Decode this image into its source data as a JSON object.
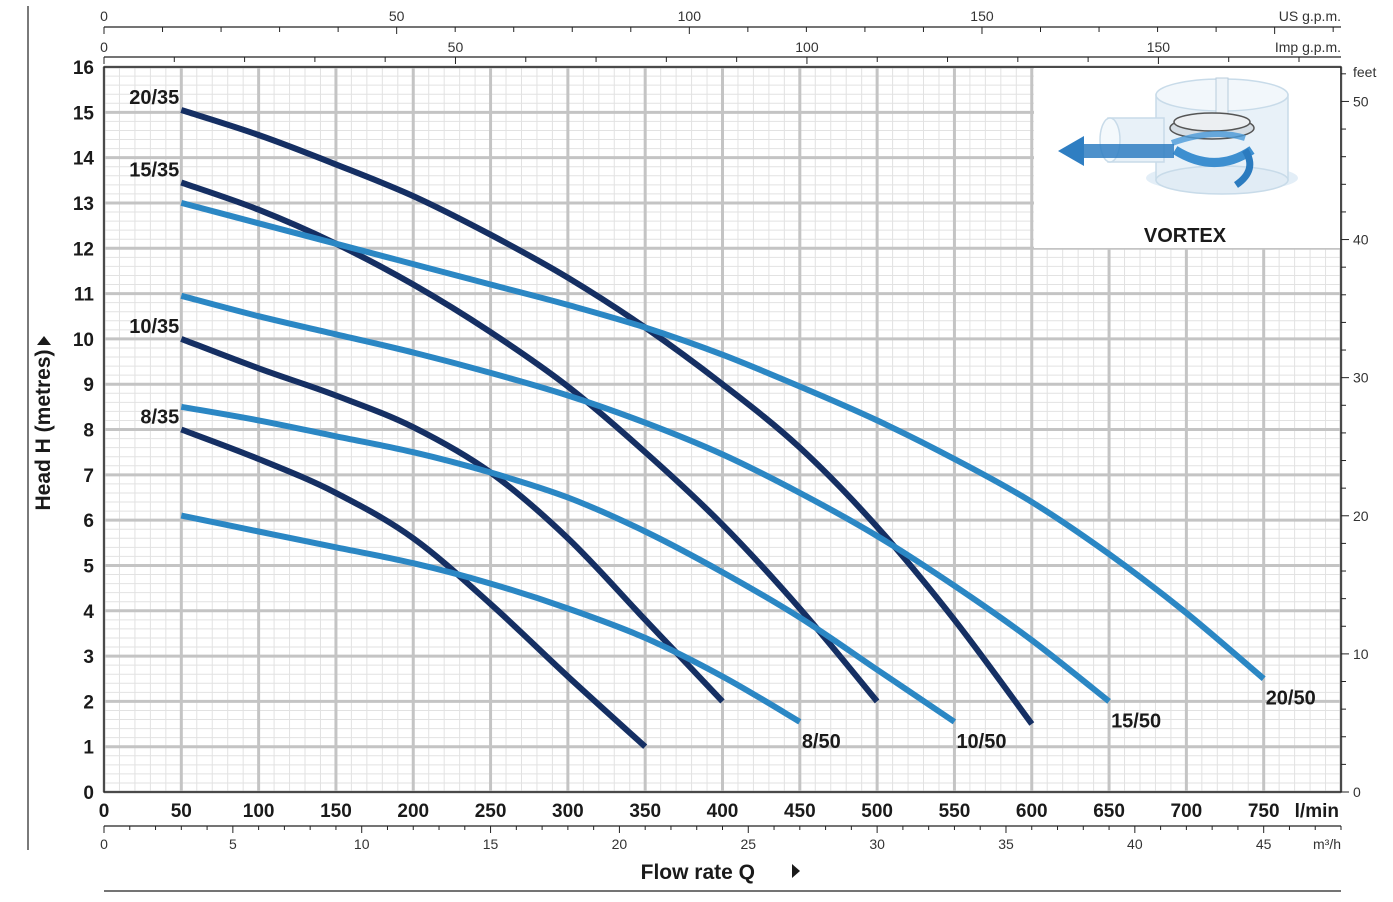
{
  "chart_data": {
    "type": "line",
    "xlabel": "Flow rate Q",
    "ylabel": "Head H  (metres)",
    "x_unit": "l/min",
    "xlim": [
      0,
      800
    ],
    "ylim": [
      0,
      16
    ],
    "x_ticks": [
      "0",
      "50",
      "100",
      "150",
      "200",
      "250",
      "300",
      "350",
      "400",
      "450",
      "500",
      "550",
      "600",
      "650",
      "700",
      "750"
    ],
    "y_ticks": [
      "0",
      "1",
      "2",
      "3",
      "4",
      "5",
      "6",
      "7",
      "8",
      "9",
      "10",
      "11",
      "12",
      "13",
      "14",
      "15",
      "16"
    ],
    "secondary_axes": {
      "top_us": {
        "unit": "US g.p.m.",
        "ticks": [
          "0",
          "50",
          "100",
          "150"
        ]
      },
      "top_imp": {
        "unit": "Imp g.p.m.",
        "ticks": [
          "0",
          "50",
          "100",
          "150"
        ]
      },
      "bottom_m3h": {
        "unit": "m³/h",
        "ticks": [
          "0",
          "5",
          "10",
          "15",
          "20",
          "25",
          "30",
          "35",
          "40",
          "45"
        ]
      },
      "right_feet": {
        "unit": "feet",
        "ticks": [
          "0",
          "10",
          "20",
          "30",
          "40",
          "50"
        ]
      }
    },
    "grid": true,
    "inset_label": "VORTEX",
    "colors": {
      "35_series": "#152f63",
      "50_series": "#2b87c4",
      "grid_major": "#c4c4c4",
      "grid_minor": "#e2e2e2"
    },
    "series": [
      {
        "name": "20/35",
        "color": "#152f63",
        "points": [
          [
            50,
            15.05
          ],
          [
            100,
            14.5
          ],
          [
            150,
            13.85
          ],
          [
            200,
            13.15
          ],
          [
            250,
            12.3
          ],
          [
            300,
            11.35
          ],
          [
            350,
            10.25
          ],
          [
            400,
            9.0
          ],
          [
            450,
            7.6
          ],
          [
            500,
            5.85
          ],
          [
            550,
            3.8
          ],
          [
            600,
            1.5
          ]
        ]
      },
      {
        "name": "15/35",
        "color": "#152f63",
        "points": [
          [
            50,
            13.45
          ],
          [
            100,
            12.85
          ],
          [
            150,
            12.1
          ],
          [
            200,
            11.2
          ],
          [
            250,
            10.15
          ],
          [
            300,
            8.95
          ],
          [
            350,
            7.5
          ],
          [
            400,
            5.9
          ],
          [
            450,
            4.05
          ],
          [
            500,
            2.0
          ]
        ]
      },
      {
        "name": "10/35",
        "color": "#152f63",
        "points": [
          [
            50,
            10.0
          ],
          [
            100,
            9.35
          ],
          [
            150,
            8.75
          ],
          [
            200,
            8.05
          ],
          [
            250,
            7.05
          ],
          [
            300,
            5.6
          ],
          [
            350,
            3.8
          ],
          [
            400,
            2.0
          ]
        ]
      },
      {
        "name": "8/35",
        "color": "#152f63",
        "points": [
          [
            50,
            8.0
          ],
          [
            100,
            7.35
          ],
          [
            150,
            6.6
          ],
          [
            200,
            5.6
          ],
          [
            250,
            4.15
          ],
          [
            300,
            2.55
          ],
          [
            350,
            1.0
          ]
        ]
      },
      {
        "name": "20/50",
        "color": "#2b87c4",
        "points": [
          [
            50,
            13.0
          ],
          [
            100,
            12.55
          ],
          [
            150,
            12.1
          ],
          [
            200,
            11.65
          ],
          [
            250,
            11.2
          ],
          [
            300,
            10.75
          ],
          [
            350,
            10.25
          ],
          [
            400,
            9.65
          ],
          [
            450,
            8.95
          ],
          [
            500,
            8.2
          ],
          [
            550,
            7.35
          ],
          [
            600,
            6.4
          ],
          [
            650,
            5.25
          ],
          [
            700,
            3.95
          ],
          [
            750,
            2.5
          ]
        ]
      },
      {
        "name": "15/50",
        "color": "#2b87c4",
        "points": [
          [
            50,
            10.95
          ],
          [
            100,
            10.5
          ],
          [
            150,
            10.1
          ],
          [
            200,
            9.7
          ],
          [
            250,
            9.25
          ],
          [
            300,
            8.75
          ],
          [
            350,
            8.15
          ],
          [
            400,
            7.45
          ],
          [
            450,
            6.6
          ],
          [
            500,
            5.65
          ],
          [
            550,
            4.55
          ],
          [
            600,
            3.35
          ],
          [
            650,
            2.0
          ]
        ]
      },
      {
        "name": "10/50",
        "color": "#2b87c4",
        "points": [
          [
            50,
            8.5
          ],
          [
            100,
            8.2
          ],
          [
            150,
            7.85
          ],
          [
            200,
            7.5
          ],
          [
            250,
            7.05
          ],
          [
            300,
            6.5
          ],
          [
            350,
            5.75
          ],
          [
            400,
            4.85
          ],
          [
            450,
            3.85
          ],
          [
            500,
            2.7
          ],
          [
            550,
            1.55
          ]
        ]
      },
      {
        "name": "8/50",
        "color": "#2b87c4",
        "points": [
          [
            50,
            6.1
          ],
          [
            100,
            5.75
          ],
          [
            150,
            5.4
          ],
          [
            200,
            5.05
          ],
          [
            250,
            4.6
          ],
          [
            300,
            4.05
          ],
          [
            350,
            3.4
          ],
          [
            400,
            2.55
          ],
          [
            450,
            1.55
          ]
        ]
      }
    ]
  }
}
